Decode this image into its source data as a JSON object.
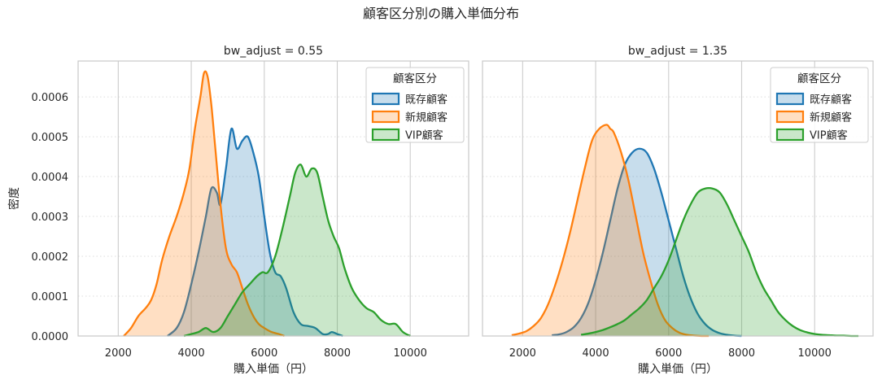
{
  "figure": {
    "title": "顧客区分別の購入単価分布",
    "ylabel": "密度",
    "xlabel": "購入単価（円）",
    "legend_title": "顧客区分"
  },
  "chart_data": [
    {
      "type": "area",
      "title": "bw_adjust = 0.55",
      "xlabel": "購入単価（円）",
      "ylabel": "密度",
      "xlim": [
        900,
        11600
      ],
      "ylim": [
        0,
        0.00069
      ],
      "xticks": [
        "2000",
        "4000",
        "6000",
        "8000",
        "10000"
      ],
      "xtick_values": [
        2000,
        4000,
        6000,
        8000,
        10000
      ],
      "yticks": [
        "0.0000",
        "0.0001",
        "0.0002",
        "0.0003",
        "0.0004",
        "0.0005",
        "0.0006"
      ],
      "ytick_values": [
        0,
        0.0001,
        0.0002,
        0.0003,
        0.0004,
        0.0005,
        0.0006
      ],
      "grid": "vertical solid, horizontal dotted",
      "legend_position": "top-right",
      "series": [
        {
          "name": "既存顧客",
          "color": "#1f77b4",
          "x": [
            3350,
            3600,
            3800,
            4000,
            4200,
            4400,
            4550,
            4700,
            4800,
            4950,
            5100,
            5250,
            5400,
            5550,
            5700,
            5850,
            6000,
            6150,
            6300,
            6450,
            6600,
            6800,
            7000,
            7200,
            7400,
            7600,
            7750,
            7850,
            8000,
            8150
          ],
          "y": [
            0,
            2e-05,
            6e-05,
            0.00013,
            0.00021,
            0.0003,
            0.00037,
            0.00036,
            0.00033,
            0.00042,
            0.00052,
            0.00047,
            0.00049,
            0.0005,
            0.00046,
            0.0004,
            0.0003,
            0.00021,
            0.00016,
            0.00015,
            0.00012,
            6e-05,
            3e-05,
            2.5e-05,
            2e-05,
            5e-06,
            5e-06,
            1e-05,
            5e-06,
            0
          ]
        },
        {
          "name": "新規顧客",
          "color": "#ff7f0e",
          "x": [
            2150,
            2350,
            2550,
            2750,
            2900,
            3050,
            3200,
            3400,
            3600,
            3800,
            3950,
            4100,
            4250,
            4350,
            4450,
            4550,
            4650,
            4800,
            4950,
            5100,
            5250,
            5400,
            5550,
            5700,
            5850,
            6000,
            6200,
            6400,
            6550
          ],
          "y": [
            0,
            2e-05,
            5e-05,
            7e-05,
            9e-05,
            0.00013,
            0.00019,
            0.00025,
            0.0003,
            0.00036,
            0.00042,
            0.00052,
            0.0006,
            0.00066,
            0.00065,
            0.00058,
            0.00048,
            0.00033,
            0.00022,
            0.00018,
            0.00016,
            0.00012,
            8e-05,
            5e-05,
            3e-05,
            2e-05,
            1e-05,
            5e-06,
            0
          ]
        },
        {
          "name": "VIP顧客",
          "color": "#2ca02c",
          "x": [
            3800,
            4000,
            4200,
            4400,
            4600,
            4800,
            5000,
            5200,
            5400,
            5600,
            5800,
            5950,
            6100,
            6300,
            6500,
            6700,
            6850,
            7000,
            7150,
            7300,
            7450,
            7600,
            7750,
            7900,
            8050,
            8200,
            8400,
            8600,
            8800,
            9000,
            9200,
            9400,
            9600,
            9800,
            10000
          ],
          "y": [
            0,
            5e-06,
            1e-05,
            2e-05,
            1e-05,
            2e-05,
            5e-05,
            8e-05,
            0.00011,
            0.00013,
            0.00015,
            0.00016,
            0.00016,
            0.0002,
            0.00027,
            0.00035,
            0.00041,
            0.00043,
            0.0004,
            0.00042,
            0.00041,
            0.00035,
            0.00029,
            0.00025,
            0.00022,
            0.00017,
            0.00012,
            9e-05,
            7e-05,
            6e-05,
            4e-05,
            3e-05,
            3e-05,
            1e-05,
            0
          ]
        }
      ]
    },
    {
      "type": "area",
      "title": "bw_adjust = 1.35",
      "xlabel": "購入単価（円）",
      "xlim": [
        900,
        11600
      ],
      "ylim": [
        0,
        0.00069
      ],
      "xticks": [
        "2000",
        "4000",
        "6000",
        "8000",
        "10000"
      ],
      "xtick_values": [
        2000,
        4000,
        6000,
        8000,
        10000
      ],
      "grid": "vertical solid, horizontal dotted",
      "legend_position": "top-right",
      "series": [
        {
          "name": "既存顧客",
          "color": "#1f77b4",
          "x": [
            2800,
            3000,
            3200,
            3400,
            3600,
            3800,
            4000,
            4200,
            4400,
            4600,
            4800,
            5000,
            5200,
            5400,
            5600,
            5800,
            6000,
            6200,
            6400,
            6600,
            6800,
            7000,
            7200,
            7400,
            7600,
            7800,
            8000
          ],
          "y": [
            2e-06,
            4e-06,
            1e-05,
            2.2e-05,
            4.5e-05,
            8.3e-05,
            0.00014,
            0.00021,
            0.00029,
            0.00037,
            0.00043,
            0.00046,
            0.00047,
            0.00046,
            0.00042,
            0.00036,
            0.00029,
            0.00022,
            0.00015,
            9.5e-05,
            5.5e-05,
            3e-05,
            1.5e-05,
            7e-06,
            3e-06,
            1e-06,
            0
          ]
        },
        {
          "name": "新規顧客",
          "color": "#ff7f0e",
          "x": [
            1700,
            1900,
            2100,
            2300,
            2500,
            2700,
            2900,
            3100,
            3300,
            3500,
            3700,
            3900,
            4100,
            4300,
            4400,
            4500,
            4700,
            4900,
            5100,
            5300,
            5500,
            5700,
            5900,
            6100,
            6300,
            6500,
            6700,
            6900,
            7100
          ],
          "y": [
            2e-06,
            6e-06,
            1.2e-05,
            2.5e-05,
            4.5e-05,
            8e-05,
            0.00013,
            0.00019,
            0.00026,
            0.00034,
            0.00042,
            0.00049,
            0.00052,
            0.00053,
            0.00052,
            0.00051,
            0.00046,
            0.00039,
            0.0003,
            0.00021,
            0.00014,
            8e-05,
            4e-05,
            2e-05,
            8e-06,
            3e-06,
            1e-06,
            0,
            0
          ]
        },
        {
          "name": "VIP顧客",
          "color": "#2ca02c",
          "x": [
            3600,
            3800,
            4000,
            4200,
            4400,
            4600,
            4800,
            5000,
            5200,
            5400,
            5600,
            5800,
            6000,
            6200,
            6400,
            6600,
            6800,
            7000,
            7200,
            7400,
            7600,
            7800,
            8000,
            8200,
            8400,
            8600,
            8800,
            9000,
            9200,
            9400,
            9600,
            9800,
            10000,
            10200,
            10400,
            10600,
            10800,
            11000,
            11200
          ],
          "y": [
            3e-06,
            6e-06,
            1e-05,
            1.5e-05,
            2.2e-05,
            3e-05,
            4e-05,
            5.5e-05,
            7e-05,
            9e-05,
            0.00012,
            0.00015,
            0.00019,
            0.00024,
            0.00029,
            0.00033,
            0.00036,
            0.00037,
            0.00037,
            0.00036,
            0.00033,
            0.00029,
            0.00025,
            0.00021,
            0.00016,
            0.00012,
            9e-05,
            6e-05,
            4e-05,
            2.5e-05,
            1.5e-05,
            9e-06,
            5e-06,
            3e-06,
            2e-06,
            1e-06,
            1e-06,
            0,
            0
          ]
        }
      ]
    }
  ]
}
